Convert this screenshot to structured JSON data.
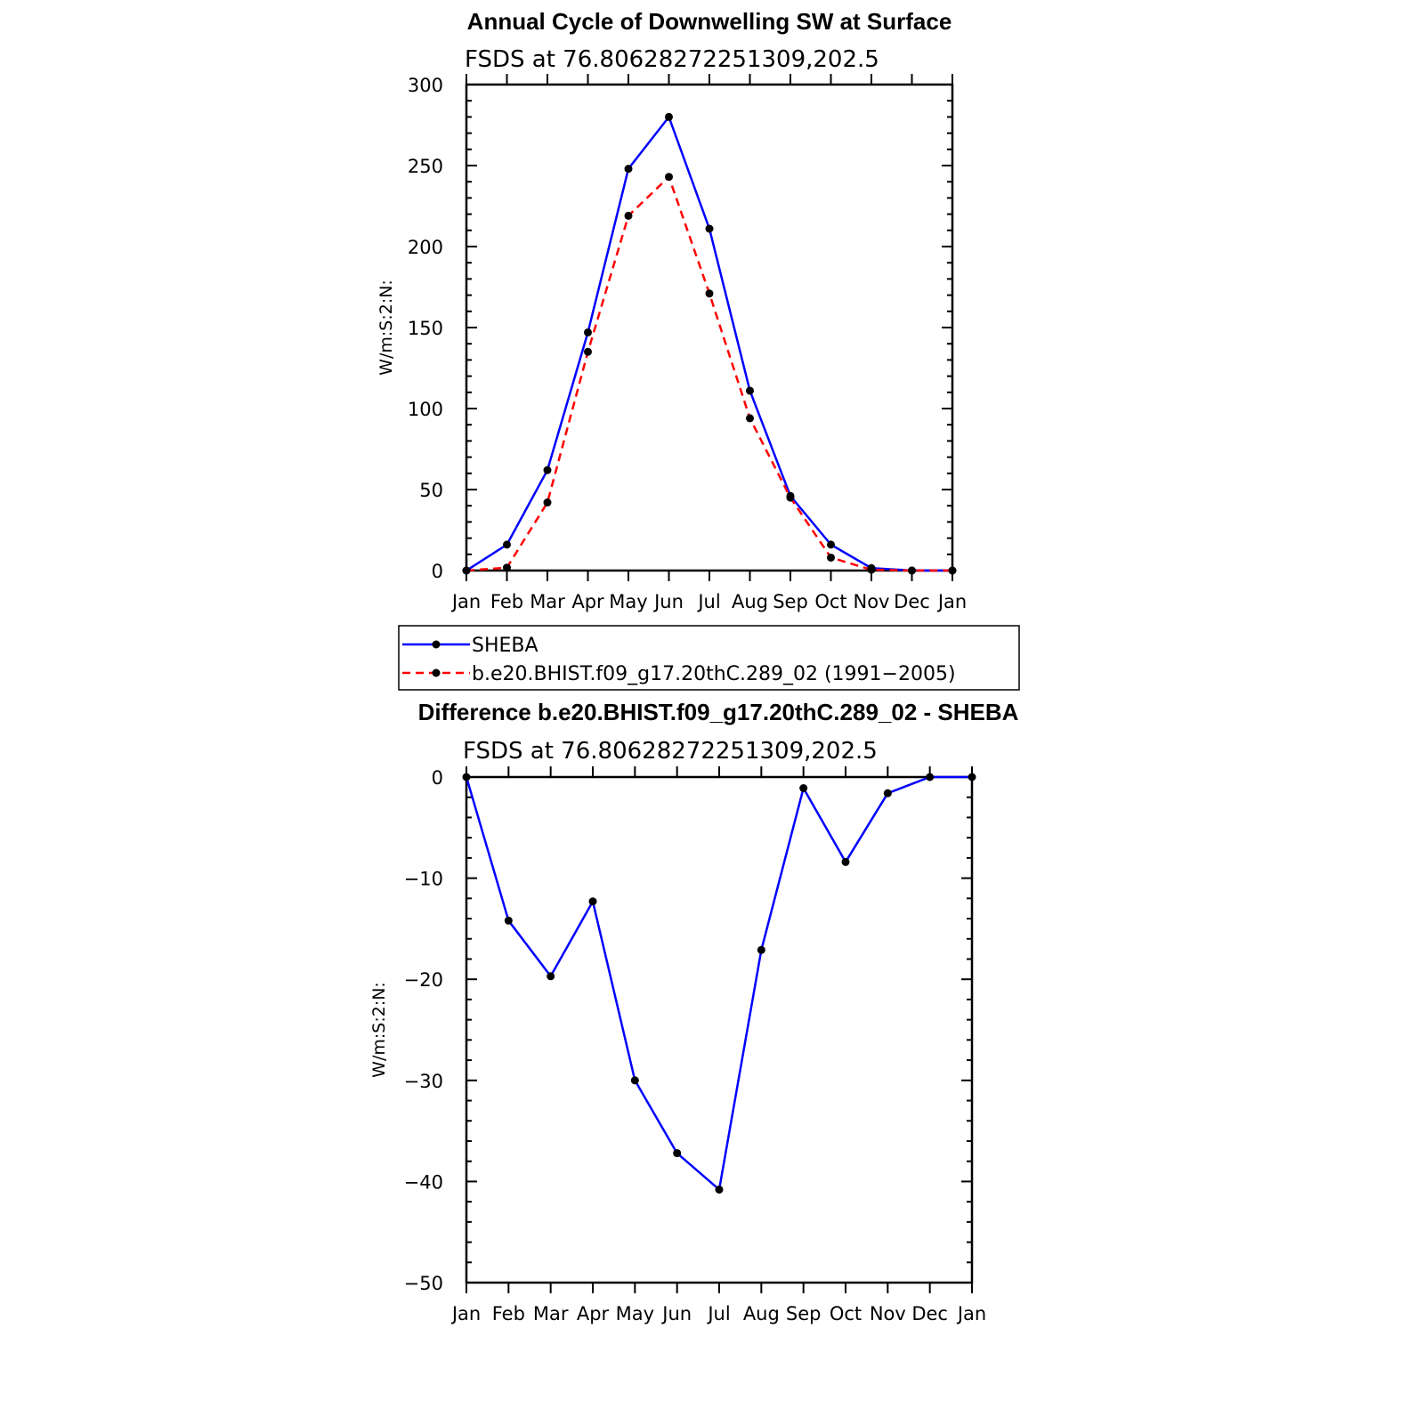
{
  "chart_data": [
    {
      "type": "line",
      "title": "Annual Cycle of Downwelling SW at Surface",
      "subtitle": "FSDS at 76.80628272251309,202.5",
      "ylabel": "W/m:S:2:N:",
      "ylim": [
        0,
        300
      ],
      "yticks": [
        "0",
        "50",
        "100",
        "150",
        "200",
        "250",
        "300"
      ],
      "categories": [
        "Jan",
        "Feb",
        "Mar",
        "Apr",
        "May",
        "Jun",
        "Jul",
        "Aug",
        "Sep",
        "Oct",
        "Nov",
        "Dec",
        "Jan"
      ],
      "series": [
        {
          "name": "SHEBA",
          "color": "#0000ff",
          "style": "solid",
          "values": [
            0,
            16,
            62,
            147,
            248,
            280,
            211,
            111,
            46,
            16,
            1.5,
            0,
            0
          ]
        },
        {
          "name": "b.e20.BHIST.f09_g17.20thC.289_02 (1991-2005)",
          "color": "#ff0000",
          "style": "dashed",
          "values": [
            0,
            1.8,
            42,
            135,
            219,
            243,
            171,
            94,
            45,
            8,
            0.5,
            0,
            0
          ]
        }
      ],
      "legend_position": "below",
      "legend": [
        "SHEBA",
        "b.e20.BHIST.f09_g17.20thC.289_02 (1991−2005)"
      ]
    },
    {
      "type": "line",
      "title": "Difference b.e20.BHIST.f09_g17.20thC.289_02 - SHEBA",
      "subtitle": "FSDS at 76.80628272251309,202.5",
      "ylabel": "W/m:S:2:N:",
      "ylim": [
        -50,
        0
      ],
      "yticks": [
        "0",
        "−10",
        "−20",
        "−30",
        "−40",
        "−50"
      ],
      "categories": [
        "Jan",
        "Feb",
        "Mar",
        "Apr",
        "May",
        "Jun",
        "Jul",
        "Aug",
        "Sep",
        "Oct",
        "Nov",
        "Dec",
        "Jan"
      ],
      "series": [
        {
          "color": "#0000ff",
          "style": "solid",
          "values": [
            0,
            -14.2,
            -19.7,
            -12.3,
            -30,
            -37.2,
            -40.8,
            -17.1,
            -1.1,
            -8.4,
            -1.6,
            0,
            0
          ]
        }
      ]
    }
  ]
}
